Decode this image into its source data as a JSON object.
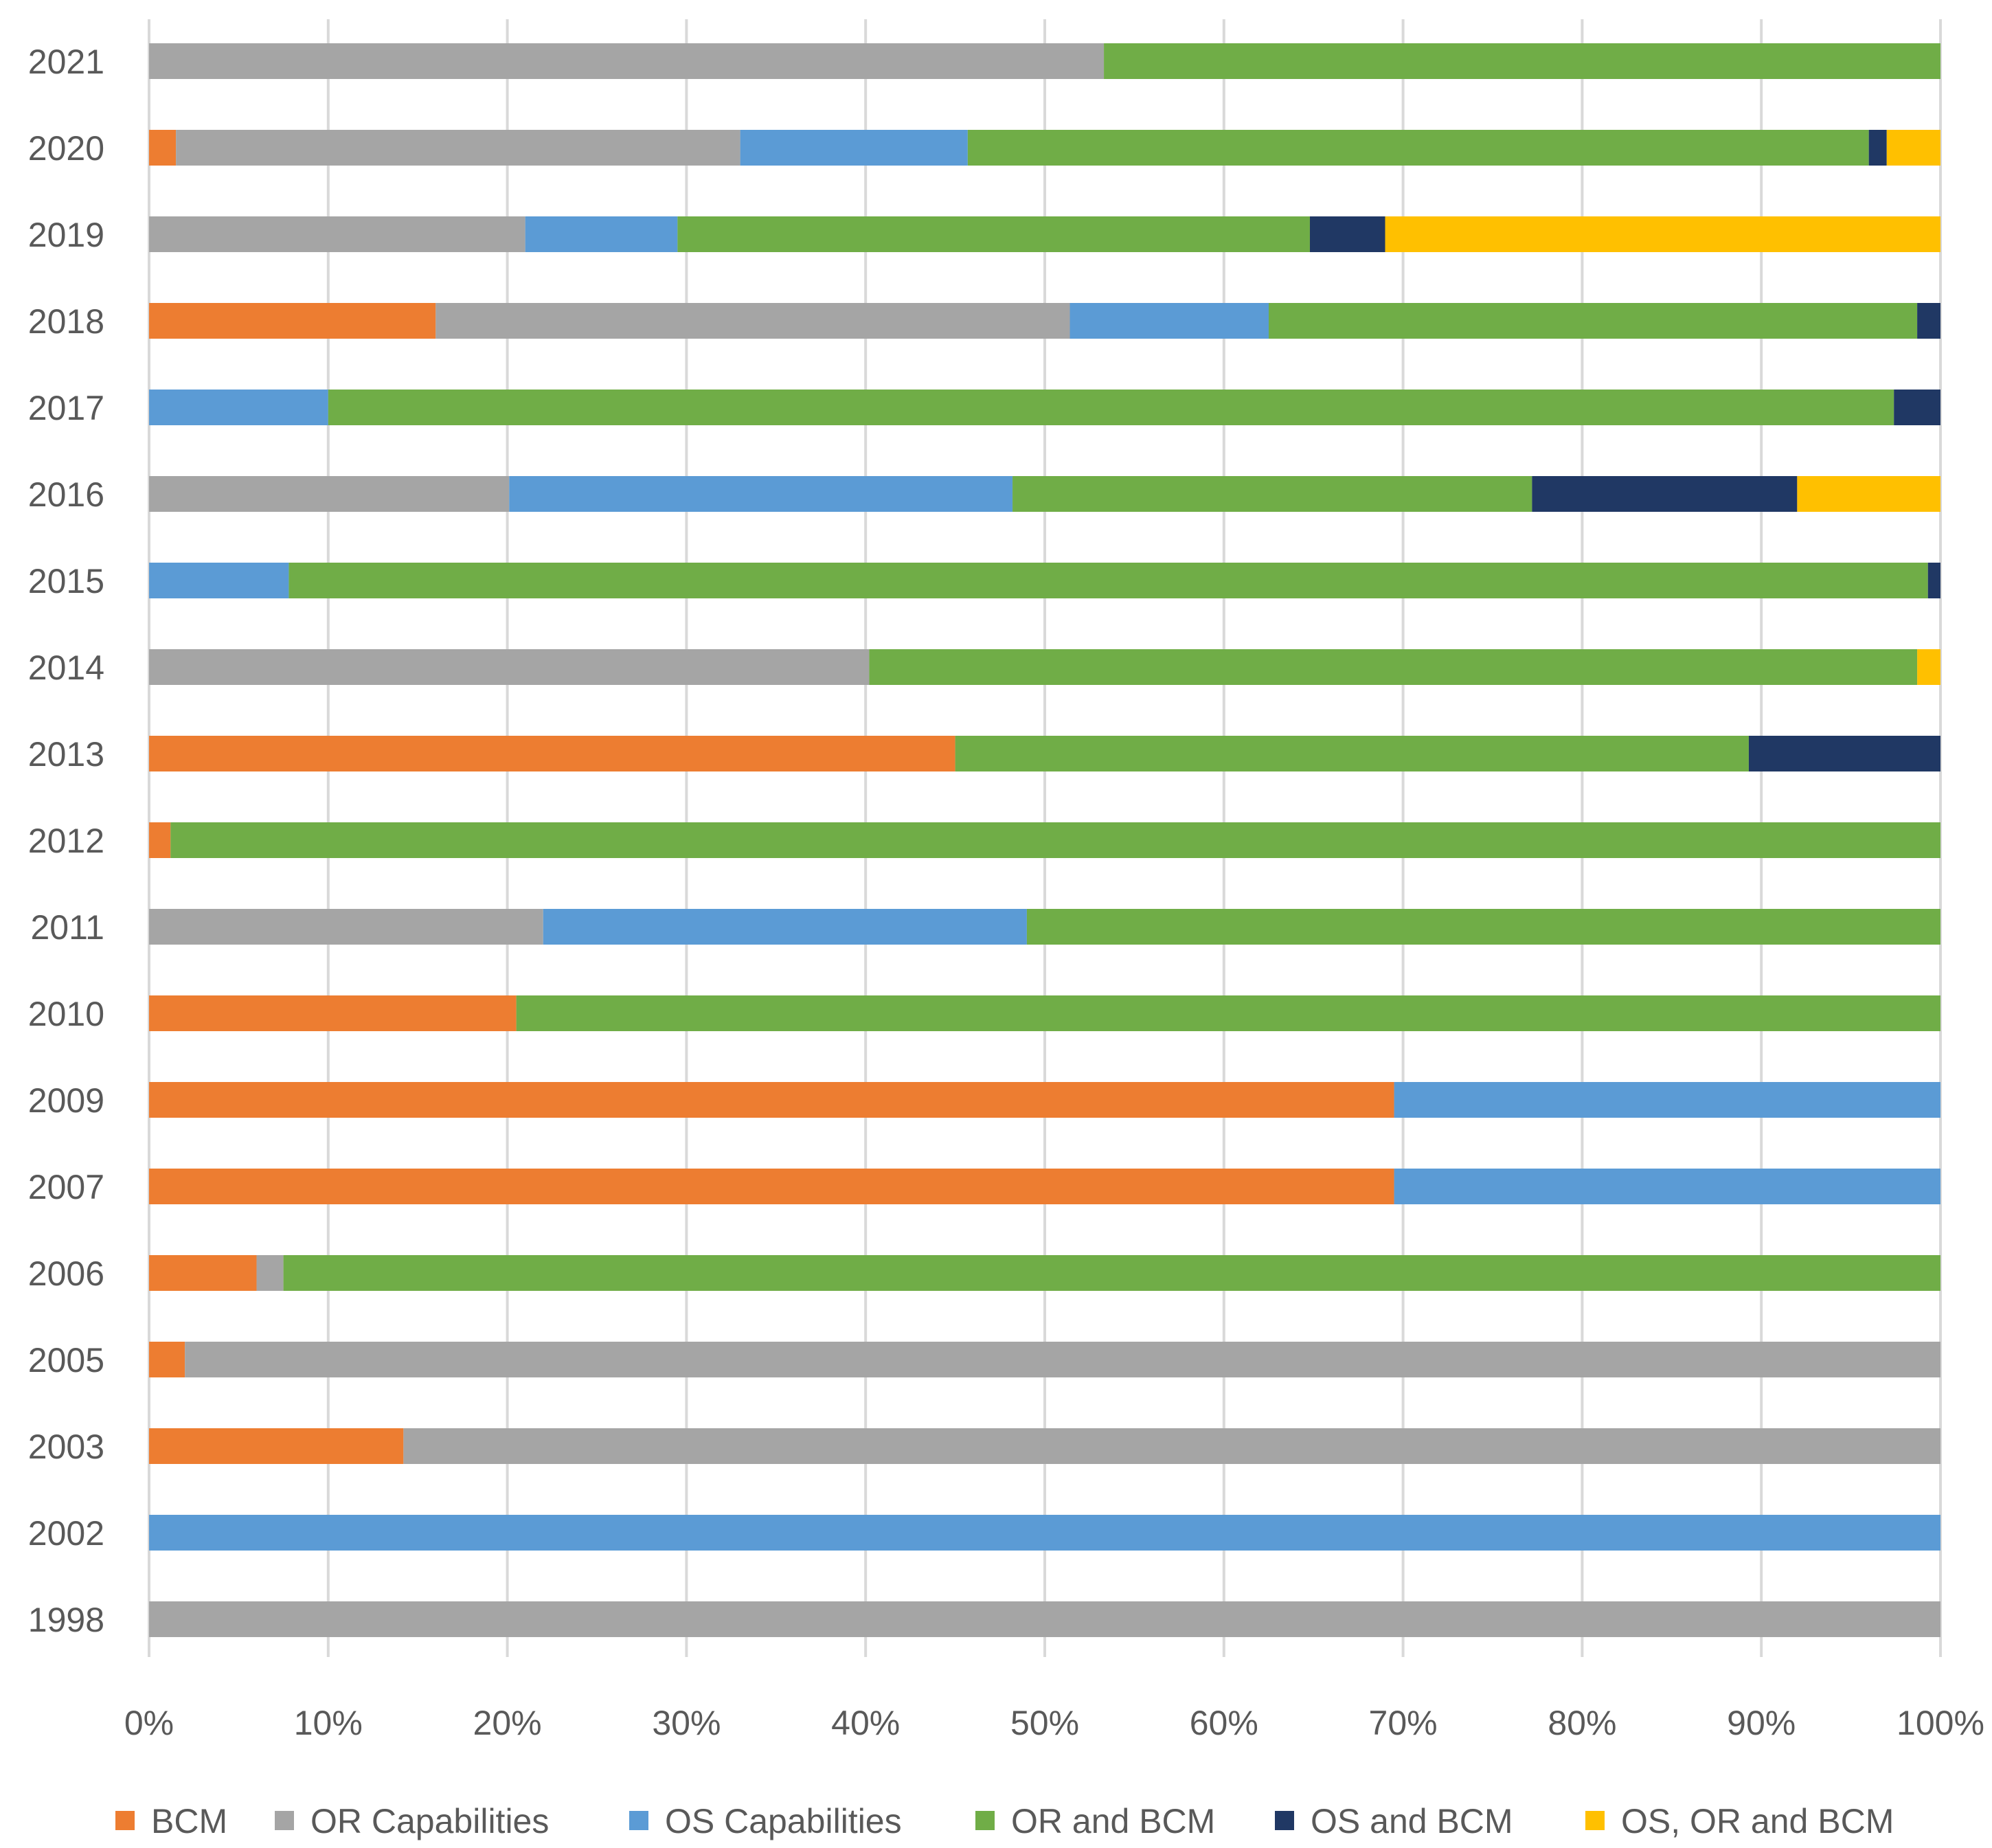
{
  "chart_data": {
    "type": "bar",
    "orientation": "horizontal",
    "stacked": "percent",
    "title": "",
    "xlabel": "",
    "ylabel": "",
    "xlim": [
      0,
      100
    ],
    "grid": true,
    "legend_position": "bottom",
    "categories": [
      "2021",
      "2020",
      "2019",
      "2018",
      "2017",
      "2016",
      "2015",
      "2014",
      "2013",
      "2012",
      "2011",
      "2010",
      "2009",
      "2007",
      "2006",
      "2005",
      "2003",
      "2002",
      "1998"
    ],
    "x_ticks": [
      "0%",
      "10%",
      "20%",
      "30%",
      "40%",
      "50%",
      "60%",
      "70%",
      "80%",
      "90%",
      "100%"
    ],
    "series": [
      {
        "name": "BCM",
        "color": "#ED7D31",
        "values": [
          0,
          1.5,
          0,
          16,
          0,
          0,
          0,
          0,
          45,
          1.2,
          0,
          20.5,
          69.5,
          69.5,
          6,
          2,
          14.2,
          0,
          0
        ]
      },
      {
        "name": "OR Capabilities",
        "color": "#A5A5A5",
        "values": [
          53.3,
          31.5,
          21,
          35.4,
          0,
          20.1,
          0,
          40.2,
          0,
          0,
          22,
          0,
          0,
          0,
          1.5,
          98,
          85.8,
          0,
          100
        ]
      },
      {
        "name": "OS Capabilities",
        "color": "#5B9BD5",
        "values": [
          0,
          12.7,
          8.5,
          11.1,
          10,
          28.1,
          7.8,
          0,
          0,
          0,
          27,
          0,
          30.5,
          30.5,
          0,
          0,
          0,
          100,
          0
        ]
      },
      {
        "name": "OR and BCM",
        "color": "#70AD47",
        "values": [
          46.7,
          50.3,
          35.3,
          36.2,
          87.4,
          29,
          91.5,
          58.5,
          44.3,
          98.8,
          51,
          79.5,
          0,
          0,
          92.5,
          0,
          0,
          0,
          0
        ]
      },
      {
        "name": "OS and BCM",
        "color": "#203864",
        "values": [
          0,
          1,
          4.2,
          1.3,
          2.6,
          14.8,
          0.7,
          0,
          10.7,
          0,
          0,
          0,
          0,
          0,
          0,
          0,
          0,
          0,
          0
        ]
      },
      {
        "name": "OS, OR and BCM",
        "color": "#FFC000",
        "values": [
          0,
          3,
          31,
          0,
          0,
          8,
          0,
          1.3,
          0,
          0,
          0,
          0,
          0,
          0,
          0,
          0,
          0,
          0,
          0
        ]
      }
    ]
  }
}
